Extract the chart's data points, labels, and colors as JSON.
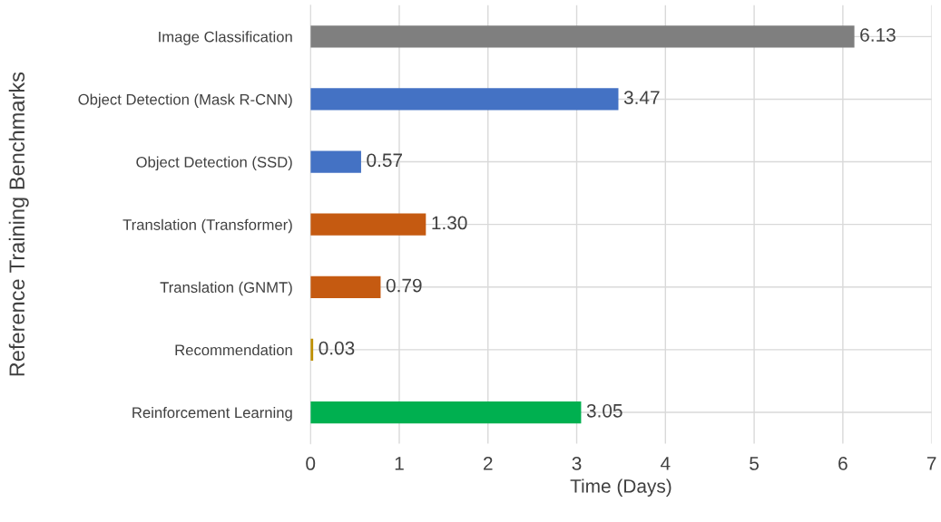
{
  "chart_data": {
    "type": "bar",
    "orientation": "horizontal",
    "xlabel": "Time (Days)",
    "ylabel": "Reference Training Benchmarks",
    "categories": [
      "Image Classification",
      "Object Detection (Mask R-CNN)",
      "Object Detection (SSD)",
      "Translation (Transformer)",
      "Translation (GNMT)",
      "Recommendation",
      "Reinforcement Learning"
    ],
    "values": [
      6.13,
      3.47,
      0.57,
      1.3,
      0.79,
      0.03,
      3.05
    ],
    "value_labels": [
      "6.13",
      "3.47",
      "0.57",
      "1.30",
      "0.79",
      "0.03",
      "3.05"
    ],
    "colors": [
      "#7f7f7f",
      "#4472c4",
      "#4472c4",
      "#c55a11",
      "#c55a11",
      "#bf9000",
      "#00b050"
    ],
    "xlim": [
      0,
      7
    ],
    "xticks": [
      0,
      1,
      2,
      3,
      4,
      5,
      6,
      7
    ],
    "grid": true
  }
}
